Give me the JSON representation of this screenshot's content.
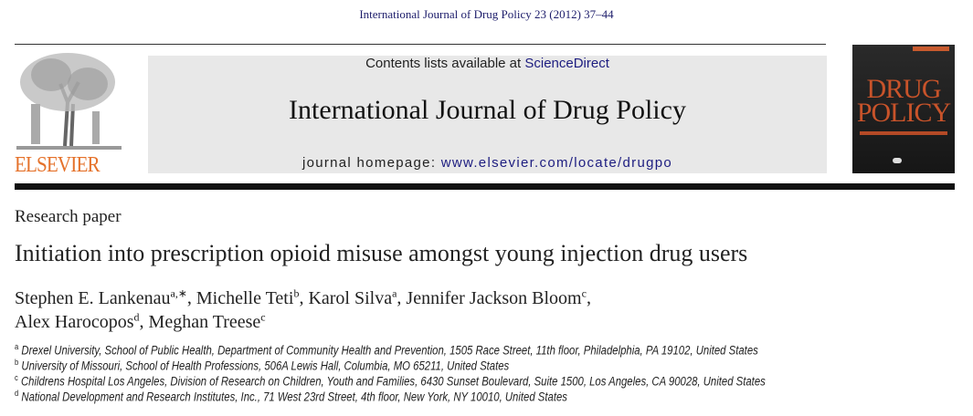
{
  "citation": "International Journal of Drug Policy 23 (2012) 37–44",
  "masthead": {
    "publisher_logo_text": "ELSEVIER",
    "contents_prefix": "Contents lists available at ",
    "contents_link": "ScienceDirect",
    "journal_title": "International Journal of Drug Policy",
    "homepage_prefix": "journal homepage: ",
    "homepage_url": "www.elsevier.com/locate/drugpo",
    "cover_title_line1": "DRUG",
    "cover_title_line2": "POLICY",
    "logo_color": "#e5722b",
    "link_color": "#1d1d80"
  },
  "article": {
    "type": "Research paper",
    "title": "Initiation into prescription opioid misuse amongst young injection drug users",
    "authors": [
      {
        "name": "Stephen E. Lankenau",
        "sup": "a,∗",
        "sep": ", "
      },
      {
        "name": "Michelle Teti",
        "sup": "b",
        "sep": ", "
      },
      {
        "name": "Karol Silva",
        "sup": "a",
        "sep": ", "
      },
      {
        "name": "Jennifer Jackson Bloom",
        "sup": "c",
        "sep": ","
      },
      {
        "name": "Alex Harocopos",
        "sup": "d",
        "sep": ", "
      },
      {
        "name": "Meghan Treese",
        "sup": "c",
        "sep": ""
      }
    ],
    "affiliations": [
      {
        "key": "a",
        "text": "Drexel University, School of Public Health, Department of Community Health and Prevention, 1505 Race Street, 11th floor, Philadelphia, PA 19102, United States"
      },
      {
        "key": "b",
        "text": "University of Missouri, School of Health Professions, 506A Lewis Hall, Columbia, MO 65211, United States"
      },
      {
        "key": "c",
        "text": "Childrens Hospital Los Angeles, Division of Research on Children, Youth and Families, 6430 Sunset Boulevard, Suite 1500, Los Angeles, CA 90028, United States"
      },
      {
        "key": "d",
        "text": "National Development and Research Institutes, Inc., 71 West 23rd Street, 4th floor, New York, NY 10010, United States"
      }
    ]
  }
}
